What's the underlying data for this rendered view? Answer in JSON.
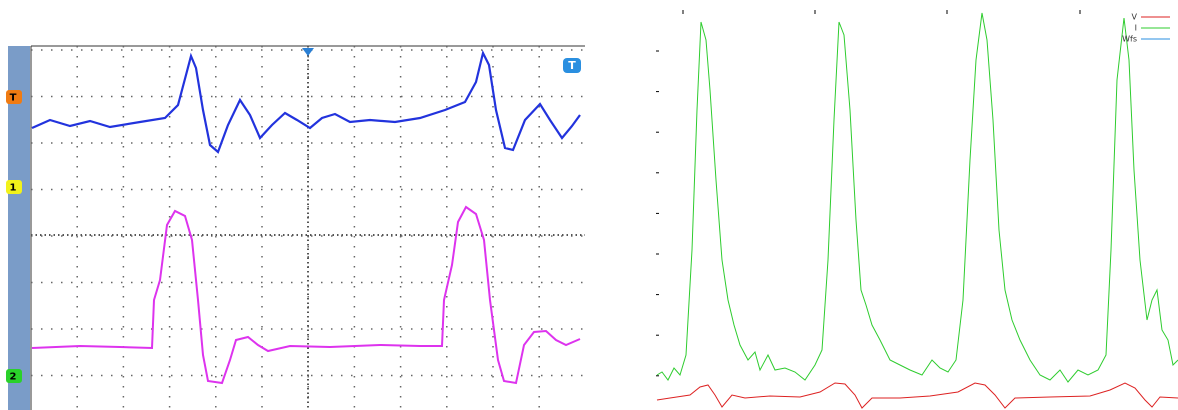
{
  "scope": {
    "channel_markers": [
      "T",
      "1",
      "2"
    ],
    "trigger_label": "T"
  },
  "plot": {
    "legend": [
      "V",
      "I",
      "Wfs"
    ]
  }
}
